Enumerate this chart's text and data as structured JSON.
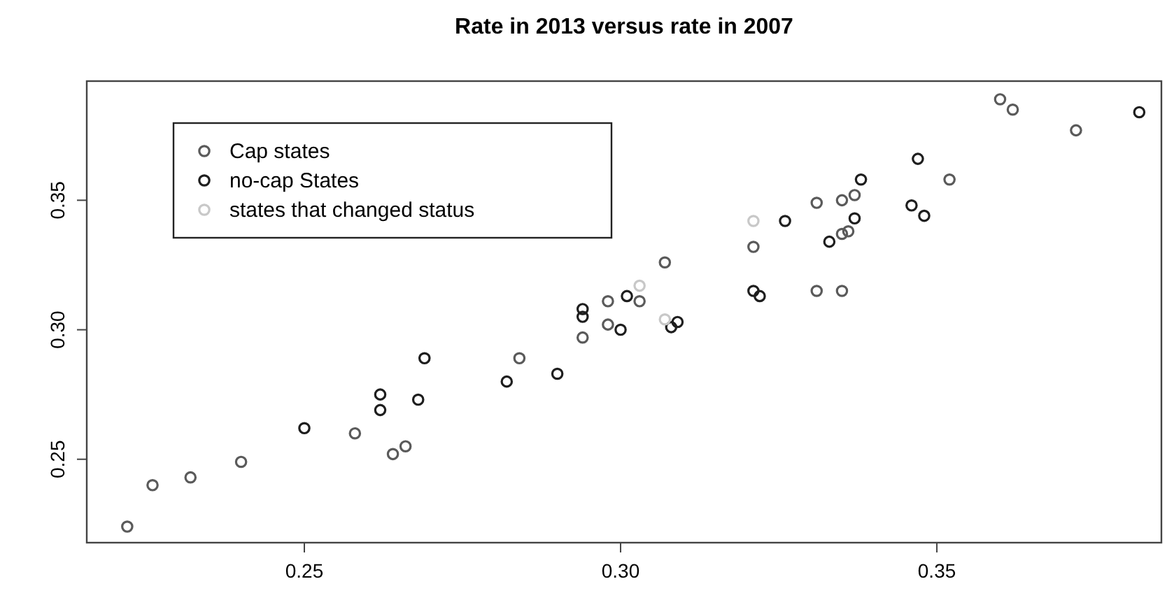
{
  "chart_data": {
    "type": "scatter",
    "title": "Rate in 2013 versus rate in 2007",
    "xlim": [
      0.2156,
      0.3855
    ],
    "ylim": [
      0.2178,
      0.396
    ],
    "xticks": [
      {
        "value": 0.25,
        "label": "0.25"
      },
      {
        "value": 0.3,
        "label": "0.30"
      },
      {
        "value": 0.35,
        "label": "0.35"
      }
    ],
    "yticks": [
      {
        "value": 0.25,
        "label": "0.25"
      },
      {
        "value": 0.3,
        "label": "0.30"
      },
      {
        "value": 0.35,
        "label": "0.35"
      }
    ],
    "marker": "circle",
    "legend": "top left",
    "grid": false,
    "series": [
      {
        "name": "Cap states",
        "color": "#5a5a5a",
        "x": [
          0.222,
          0.226,
          0.232,
          0.24,
          0.258,
          0.264,
          0.266,
          0.284,
          0.294,
          0.298,
          0.298,
          0.303,
          0.307,
          0.321,
          0.331,
          0.331,
          0.335,
          0.335,
          0.336,
          0.335,
          0.337,
          0.352,
          0.36,
          0.362,
          0.372
        ],
        "values": [
          0.224,
          0.24,
          0.243,
          0.249,
          0.26,
          0.252,
          0.255,
          0.289,
          0.297,
          0.311,
          0.302,
          0.311,
          0.326,
          0.332,
          0.349,
          0.315,
          0.315,
          0.337,
          0.338,
          0.35,
          0.352,
          0.358,
          0.389,
          0.385,
          0.377
        ]
      },
      {
        "name": "no-cap States",
        "color": "#1e1e1e",
        "x": [
          0.25,
          0.262,
          0.262,
          0.268,
          0.269,
          0.282,
          0.29,
          0.294,
          0.294,
          0.3,
          0.301,
          0.308,
          0.309,
          0.321,
          0.322,
          0.326,
          0.333,
          0.337,
          0.338,
          0.347,
          0.346,
          0.348,
          0.382
        ],
        "values": [
          0.262,
          0.275,
          0.269,
          0.273,
          0.289,
          0.28,
          0.283,
          0.305,
          0.308,
          0.3,
          0.313,
          0.301,
          0.303,
          0.315,
          0.313,
          0.342,
          0.334,
          0.343,
          0.358,
          0.366,
          0.348,
          0.344,
          0.384
        ]
      },
      {
        "name": "states that changed status",
        "color": "#c8c8c8",
        "x": [
          0.303,
          0.307,
          0.321
        ],
        "values": [
          0.317,
          0.304,
          0.342
        ]
      }
    ]
  }
}
